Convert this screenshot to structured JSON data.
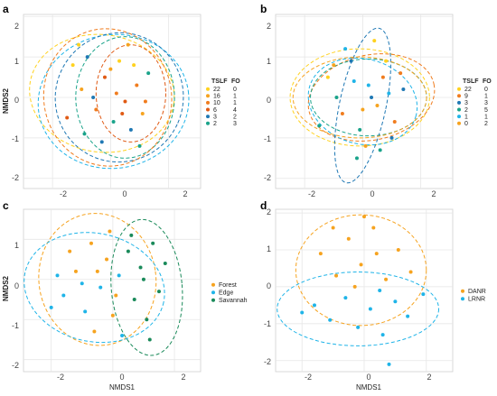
{
  "chart_data": [
    {
      "panel": "a",
      "type": "scatter",
      "xlabel": "",
      "ylabel": "NMDS2",
      "xlim": [
        -3.0,
        3.1
      ],
      "ylim": [
        -2.25,
        2.05
      ],
      "xticks": [
        "-2",
        "0",
        "2"
      ],
      "yticks": [
        "2",
        "1",
        "0",
        "-1",
        "-2"
      ],
      "grid": true,
      "legend_position": "right",
      "legend_headers": [
        "TSLF",
        "FO"
      ],
      "legend": [
        {
          "tslf": "22",
          "fo": "0",
          "color": "#ffd21f"
        },
        {
          "tslf": "16",
          "fo": "1",
          "color": "#f6a31f"
        },
        {
          "tslf": "10",
          "fo": "1",
          "color": "#f07c1e"
        },
        {
          "tslf": "6",
          "fo": "4",
          "color": "#e05a14"
        },
        {
          "tslf": "3",
          "fo": "2",
          "color": "#1f78b4"
        },
        {
          "tslf": "2",
          "fo": "3",
          "color": "#1aa38a"
        }
      ],
      "ellipses": [
        {
          "cx": -0.3,
          "cy": 0.1,
          "rx": 2.5,
          "ry": 1.45,
          "rot": 8,
          "color": "#ffd21f"
        },
        {
          "cx": 0.1,
          "cy": -0.1,
          "rx": 2.6,
          "ry": 1.65,
          "rot": -8,
          "color": "#1fb4e8"
        },
        {
          "cx": 0.3,
          "cy": 0.0,
          "rx": 2.2,
          "ry": 1.6,
          "rot": 25,
          "color": "#1f78b4"
        },
        {
          "cx": 0.5,
          "cy": 0.0,
          "rx": 1.7,
          "ry": 1.5,
          "rot": 0,
          "color": "#1aa38a"
        },
        {
          "cx": 0.7,
          "cy": 0.1,
          "rx": 1.2,
          "ry": 1.2,
          "rot": 0,
          "color": "#e05a14"
        },
        {
          "cx": -0.1,
          "cy": 0.0,
          "rx": 2.2,
          "ry": 1.7,
          "rot": -10,
          "color": "#f07c1e"
        }
      ],
      "points": [
        {
          "x": -1.3,
          "y": 0.8,
          "g": 0
        },
        {
          "x": -1.0,
          "y": 0.2,
          "g": 1
        },
        {
          "x": -0.8,
          "y": 1.0,
          "g": 4
        },
        {
          "x": -0.5,
          "y": -0.3,
          "g": 2
        },
        {
          "x": -0.2,
          "y": 0.5,
          "g": 3
        },
        {
          "x": 0.1,
          "y": -0.6,
          "g": 5
        },
        {
          "x": 0.3,
          "y": 0.9,
          "g": 0
        },
        {
          "x": 0.5,
          "y": -0.1,
          "g": 3
        },
        {
          "x": 0.7,
          "y": -0.8,
          "g": 4
        },
        {
          "x": 0.9,
          "y": 0.3,
          "g": 2
        },
        {
          "x": 1.1,
          "y": -0.4,
          "g": 1
        },
        {
          "x": 1.3,
          "y": 0.6,
          "g": 5
        },
        {
          "x": -1.5,
          "y": -0.5,
          "g": 3
        },
        {
          "x": -0.3,
          "y": -1.1,
          "g": 4
        },
        {
          "x": 0.2,
          "y": 0.1,
          "g": 2
        },
        {
          "x": 0.6,
          "y": 1.3,
          "g": 1
        },
        {
          "x": 1.0,
          "y": -1.2,
          "g": 5
        },
        {
          "x": -1.1,
          "y": 1.3,
          "g": 0
        },
        {
          "x": -0.6,
          "y": 0.0,
          "g": 4
        },
        {
          "x": 0.4,
          "y": -0.4,
          "g": 3
        },
        {
          "x": 0.8,
          "y": 0.8,
          "g": 0
        },
        {
          "x": 1.2,
          "y": -0.1,
          "g": 2
        },
        {
          "x": -0.9,
          "y": -0.9,
          "g": 5
        },
        {
          "x": 0.0,
          "y": 0.7,
          "g": 1
        }
      ]
    },
    {
      "panel": "b",
      "type": "scatter",
      "xlabel": "",
      "ylabel": "",
      "xlim": [
        -3.0,
        3.1
      ],
      "ylim": [
        -2.25,
        2.05
      ],
      "xticks": [
        "-2",
        "0",
        "2"
      ],
      "yticks": [
        "2",
        "1",
        "0",
        "-1",
        "-2"
      ],
      "grid": true,
      "legend_position": "right",
      "legend_headers": [
        "TSLF",
        "FO"
      ],
      "legend": [
        {
          "tslf": "22",
          "fo": "0",
          "color": "#ffd21f"
        },
        {
          "tslf": "9",
          "fo": "1",
          "color": "#f07c1e"
        },
        {
          "tslf": "3",
          "fo": "3",
          "color": "#1f78b4"
        },
        {
          "tslf": "2",
          "fo": "5",
          "color": "#1aa38a"
        },
        {
          "tslf": "1",
          "fo": "1",
          "color": "#1fb4e8"
        },
        {
          "tslf": "0",
          "fo": "2",
          "color": "#f6a31f"
        }
      ],
      "ellipses": [
        {
          "cx": -0.1,
          "cy": 0.0,
          "rx": 2.4,
          "ry": 1.2,
          "rot": 0,
          "color": "#ffd21f"
        },
        {
          "cx": 0.3,
          "cy": 0.0,
          "rx": 2.2,
          "ry": 1.05,
          "rot": -12,
          "color": "#f07c1e"
        },
        {
          "cx": 0.0,
          "cy": -0.1,
          "rx": 1.9,
          "ry": 1.05,
          "rot": 15,
          "color": "#1fb4e8"
        },
        {
          "cx": 0.2,
          "cy": 0.0,
          "rx": 2.0,
          "ry": 0.95,
          "rot": 0,
          "color": "#1aa38a"
        },
        {
          "cx": 0.0,
          "cy": -0.2,
          "rx": 0.8,
          "ry": 1.95,
          "rot": 12,
          "color": "#1f78b4"
        },
        {
          "cx": -0.1,
          "cy": 0.0,
          "rx": 2.3,
          "ry": 1.0,
          "rot": 0,
          "color": "#f6a31f"
        }
      ],
      "points": [
        {
          "x": -1.2,
          "y": 0.5,
          "g": 0
        },
        {
          "x": -0.7,
          "y": -0.4,
          "g": 1
        },
        {
          "x": -0.4,
          "y": 0.9,
          "g": 2
        },
        {
          "x": -0.1,
          "y": -0.8,
          "g": 3
        },
        {
          "x": 0.2,
          "y": 0.3,
          "g": 4
        },
        {
          "x": 0.5,
          "y": -0.2,
          "g": 5
        },
        {
          "x": 0.8,
          "y": 0.9,
          "g": 0
        },
        {
          "x": 1.1,
          "y": -0.6,
          "g": 1
        },
        {
          "x": 1.4,
          "y": 0.2,
          "g": 2
        },
        {
          "x": -0.9,
          "y": 0.0,
          "g": 3
        },
        {
          "x": -0.3,
          "y": 0.4,
          "g": 4
        },
        {
          "x": 0.1,
          "y": -1.2,
          "g": 5
        },
        {
          "x": 0.4,
          "y": 1.4,
          "g": 0
        },
        {
          "x": 0.7,
          "y": 0.5,
          "g": 1
        },
        {
          "x": 1.0,
          "y": -1.0,
          "g": 2
        },
        {
          "x": -1.5,
          "y": -0.7,
          "g": 3
        },
        {
          "x": -0.6,
          "y": 1.2,
          "g": 4
        },
        {
          "x": 0.0,
          "y": -0.3,
          "g": 5
        },
        {
          "x": 0.6,
          "y": -1.3,
          "g": 3
        },
        {
          "x": 1.3,
          "y": 0.6,
          "g": 1
        },
        {
          "x": -1.0,
          "y": 0.8,
          "g": 5
        },
        {
          "x": 0.3,
          "y": 0.0,
          "g": 2
        },
        {
          "x": -0.2,
          "y": -1.5,
          "g": 3
        },
        {
          "x": 0.9,
          "y": 0.1,
          "g": 4
        }
      ]
    },
    {
      "panel": "c",
      "type": "scatter",
      "xlabel": "NMDS1",
      "ylabel": "NMDS2",
      "xlim": [
        -2.9,
        2.85
      ],
      "ylim": [
        -2.3,
        1.75
      ],
      "xticks": [
        "-2",
        "0",
        "2"
      ],
      "yticks": [
        "1",
        "0",
        "-1",
        "-2"
      ],
      "grid": true,
      "legend_position": "right",
      "legend": [
        {
          "label": "Forest",
          "color": "#f6a31f"
        },
        {
          "label": "Edge",
          "color": "#1fb4e8"
        },
        {
          "label": "Savannah",
          "color": "#1a8a5a"
        }
      ],
      "ellipses": [
        {
          "cx": -0.5,
          "cy": 0.0,
          "rx": 1.9,
          "ry": 1.65,
          "rot": -8,
          "color": "#f6a31f"
        },
        {
          "cx": -0.6,
          "cy": -0.2,
          "rx": 2.3,
          "ry": 1.35,
          "rot": 12,
          "color": "#1fb4e8"
        },
        {
          "cx": 1.1,
          "cy": -0.2,
          "rx": 1.15,
          "ry": 1.7,
          "rot": -5,
          "color": "#1a8a5a"
        }
      ],
      "points": [
        {
          "x": -1.6,
          "y": -0.4,
          "g": 1
        },
        {
          "x": -1.2,
          "y": 0.2,
          "g": 0
        },
        {
          "x": -0.9,
          "y": -0.8,
          "g": 1
        },
        {
          "x": -0.7,
          "y": 0.9,
          "g": 0
        },
        {
          "x": -0.4,
          "y": -0.2,
          "g": 1
        },
        {
          "x": -0.2,
          "y": 0.5,
          "g": 0
        },
        {
          "x": 0.0,
          "y": -0.9,
          "g": 0
        },
        {
          "x": 0.2,
          "y": 0.1,
          "g": 1
        },
        {
          "x": 0.5,
          "y": 0.7,
          "g": 2
        },
        {
          "x": 0.7,
          "y": -0.5,
          "g": 2
        },
        {
          "x": 0.9,
          "y": 0.3,
          "g": 2
        },
        {
          "x": 1.1,
          "y": -1.0,
          "g": 2
        },
        {
          "x": 1.3,
          "y": 0.9,
          "g": 2
        },
        {
          "x": 1.5,
          "y": -0.3,
          "g": 2
        },
        {
          "x": 1.7,
          "y": 0.4,
          "g": 2
        },
        {
          "x": -2.0,
          "y": -0.7,
          "g": 1
        },
        {
          "x": -1.4,
          "y": 0.7,
          "g": 0
        },
        {
          "x": -0.6,
          "y": -1.3,
          "g": 0
        },
        {
          "x": -0.1,
          "y": 1.2,
          "g": 0
        },
        {
          "x": 0.3,
          "y": -1.4,
          "g": 1
        },
        {
          "x": -1.0,
          "y": -0.1,
          "g": 1
        },
        {
          "x": 0.6,
          "y": 1.1,
          "g": 2
        },
        {
          "x": 1.2,
          "y": -1.5,
          "g": 2
        },
        {
          "x": -0.5,
          "y": 0.2,
          "g": 0
        },
        {
          "x": 0.1,
          "y": -0.4,
          "g": 0
        },
        {
          "x": 1.0,
          "y": 0.0,
          "g": 2
        },
        {
          "x": -1.8,
          "y": 0.1,
          "g": 1
        }
      ]
    },
    {
      "panel": "d",
      "type": "scatter",
      "xlabel": "NMDS1",
      "ylabel": "",
      "xlim": [
        -2.85,
        2.85
      ],
      "ylim": [
        -2.3,
        2.1
      ],
      "xticks": [
        "-2",
        "0",
        "2"
      ],
      "yticks": [
        "2",
        "1",
        "0",
        "-1",
        "-2"
      ],
      "grid": true,
      "legend_position": "right",
      "legend": [
        {
          "label": "DANR",
          "color": "#f6a31f"
        },
        {
          "label": "LRNR",
          "color": "#1fb4e8"
        }
      ],
      "ellipses": [
        {
          "cx": -0.1,
          "cy": 0.45,
          "rx": 2.1,
          "ry": 1.5,
          "rot": 0,
          "color": "#f6a31f"
        },
        {
          "cx": -0.2,
          "cy": -0.6,
          "rx": 2.6,
          "ry": 1.0,
          "rot": 0,
          "color": "#1fb4e8"
        }
      ],
      "points": [
        {
          "x": -1.4,
          "y": 0.9,
          "g": 0
        },
        {
          "x": -0.9,
          "y": 0.3,
          "g": 0
        },
        {
          "x": -0.5,
          "y": 1.3,
          "g": 0
        },
        {
          "x": -0.1,
          "y": 0.6,
          "g": 0
        },
        {
          "x": 0.3,
          "y": 1.6,
          "g": 0
        },
        {
          "x": 0.7,
          "y": 0.2,
          "g": 0
        },
        {
          "x": 1.1,
          "y": 1.0,
          "g": 0
        },
        {
          "x": 1.5,
          "y": 0.4,
          "g": 0
        },
        {
          "x": -1.6,
          "y": -0.5,
          "g": 1
        },
        {
          "x": -1.1,
          "y": -0.9,
          "g": 1
        },
        {
          "x": -0.6,
          "y": -0.3,
          "g": 1
        },
        {
          "x": -0.2,
          "y": -1.1,
          "g": 1
        },
        {
          "x": 0.2,
          "y": -0.6,
          "g": 1
        },
        {
          "x": 0.6,
          "y": -1.3,
          "g": 1
        },
        {
          "x": 1.0,
          "y": -0.4,
          "g": 1
        },
        {
          "x": 1.4,
          "y": -0.8,
          "g": 1
        },
        {
          "x": -2.0,
          "y": -0.7,
          "g": 1
        },
        {
          "x": 0.0,
          "y": 1.9,
          "g": 0
        },
        {
          "x": -0.3,
          "y": 0.0,
          "g": 0
        },
        {
          "x": 0.5,
          "y": -0.1,
          "g": 1
        },
        {
          "x": 1.9,
          "y": -0.2,
          "g": 1
        },
        {
          "x": 0.8,
          "y": -2.1,
          "g": 1
        },
        {
          "x": -1.0,
          "y": 1.6,
          "g": 0
        },
        {
          "x": 0.4,
          "y": 0.9,
          "g": 0
        }
      ]
    }
  ]
}
